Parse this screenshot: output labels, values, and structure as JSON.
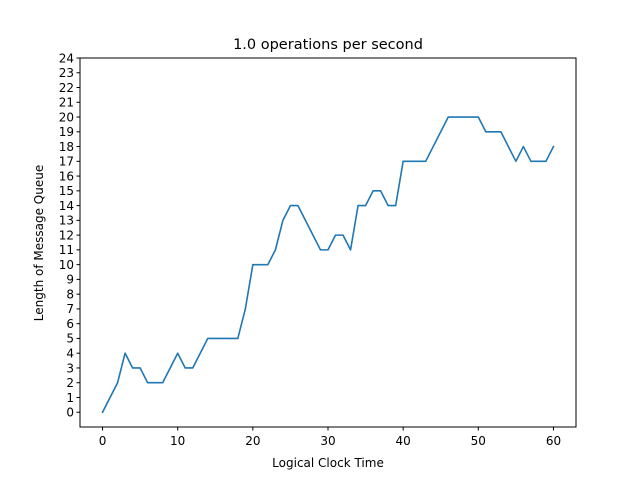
{
  "chart_data": {
    "type": "line",
    "title": "1.0 operations per second",
    "xlabel": "Logical Clock Time",
    "ylabel": "Length of Message Queue",
    "xlim": [
      -3,
      63
    ],
    "ylim": [
      -1,
      24
    ],
    "xticks": [
      0,
      10,
      20,
      30,
      40,
      50,
      60
    ],
    "yticks": [
      0,
      1,
      2,
      3,
      4,
      5,
      6,
      7,
      8,
      9,
      10,
      11,
      12,
      13,
      14,
      15,
      16,
      17,
      18,
      19,
      20,
      21,
      22,
      23,
      24
    ],
    "grid": false,
    "legend": "none",
    "series": [
      {
        "color": "#1f77b4",
        "x": [
          0,
          1,
          2,
          3,
          4,
          5,
          6,
          7,
          8,
          9,
          10,
          11,
          12,
          13,
          14,
          15,
          16,
          17,
          18,
          19,
          20,
          21,
          22,
          23,
          24,
          25,
          26,
          27,
          28,
          29,
          30,
          31,
          32,
          33,
          34,
          35,
          36,
          37,
          38,
          39,
          40,
          41,
          42,
          43,
          44,
          45,
          46,
          47,
          48,
          49,
          50,
          51,
          52,
          53,
          54,
          55,
          56,
          57,
          58,
          59,
          60
        ],
        "y": [
          0,
          1,
          2,
          4,
          3,
          3,
          2,
          2,
          2,
          3,
          4,
          3,
          3,
          4,
          5,
          5,
          5,
          5,
          5,
          7,
          10,
          10,
          10,
          11,
          13,
          14,
          14,
          13,
          12,
          11,
          11,
          12,
          12,
          11,
          14,
          14,
          15,
          15,
          14,
          14,
          17,
          17,
          17,
          17,
          18,
          19,
          20,
          20,
          20,
          20,
          20,
          19,
          19,
          19,
          18,
          17,
          18,
          17,
          17,
          17,
          18
        ]
      }
    ]
  }
}
